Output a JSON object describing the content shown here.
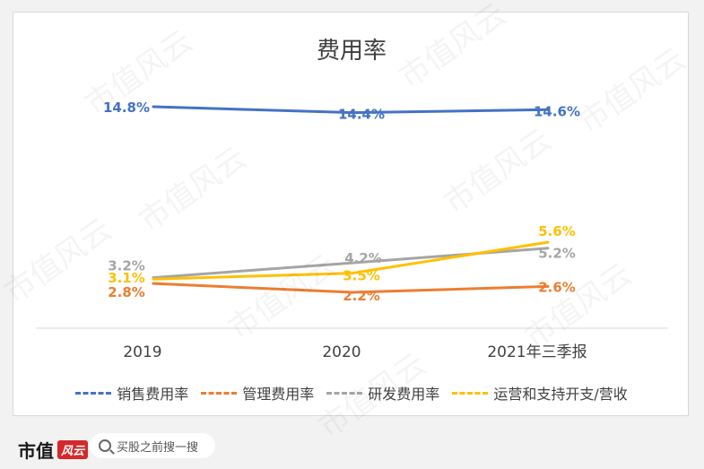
{
  "chart_data": {
    "type": "line",
    "title": "费用率",
    "categories": [
      "2019",
      "2020",
      "2021年三季报"
    ],
    "ylim": [
      0,
      16
    ],
    "grid": false,
    "legend_position": "bottom",
    "series": [
      {
        "name": "销售费用率",
        "values": [
          14.8,
          14.4,
          14.6
        ],
        "labels": [
          "14.8%",
          "14.4%",
          "14.6%"
        ],
        "color": "#4472c4"
      },
      {
        "name": "管理费用率",
        "values": [
          2.8,
          2.2,
          2.6
        ],
        "labels": [
          "2.8%",
          "2.2%",
          "2.6%"
        ],
        "color": "#ed7d31"
      },
      {
        "name": "研发费用率",
        "values": [
          3.2,
          4.2,
          5.2
        ],
        "labels": [
          "3.2%",
          "4.2%",
          "5.2%"
        ],
        "color": "#a5a5a5"
      },
      {
        "name": "运营和支持开支/营收",
        "values": [
          3.1,
          3.5,
          5.6
        ],
        "labels": [
          "3.1%",
          "3.5%",
          "5.6%"
        ],
        "color": "#ffc000"
      }
    ]
  },
  "watermark": "市值风云",
  "footer": {
    "brand": "市值",
    "brand_badge": "风云",
    "search_placeholder": "买股之前搜一搜"
  }
}
